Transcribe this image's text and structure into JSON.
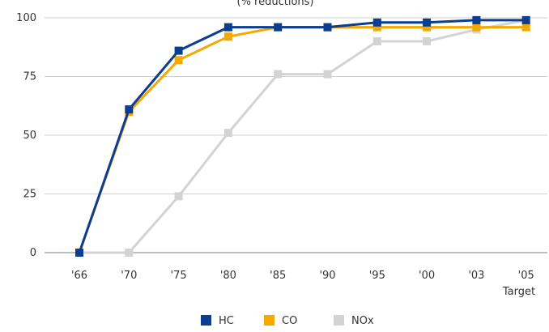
{
  "chart_data": {
    "type": "line",
    "subtitle": "(% reductions)",
    "categories": [
      "'66",
      "'70",
      "'75",
      "'80",
      "'85",
      "'90",
      "'95",
      "'00",
      "'03",
      "'05"
    ],
    "category_note": "Target",
    "ylim": [
      0,
      100
    ],
    "yticks": [
      0,
      25,
      50,
      75,
      100
    ],
    "grid": true,
    "legend_position": "bottom",
    "series": [
      {
        "name": "HC",
        "color": "#0b3d91",
        "values": [
          0,
          61,
          86,
          96,
          96,
          96,
          98,
          98,
          99,
          99
        ]
      },
      {
        "name": "CO",
        "color": "#f4a900",
        "values": [
          0,
          60,
          82,
          92,
          96,
          96,
          96,
          96,
          96,
          96
        ]
      },
      {
        "name": "NOx",
        "color": "#d3d3d3",
        "values": [
          0,
          0,
          24,
          51,
          76,
          76,
          90,
          90,
          95,
          99
        ]
      }
    ]
  }
}
